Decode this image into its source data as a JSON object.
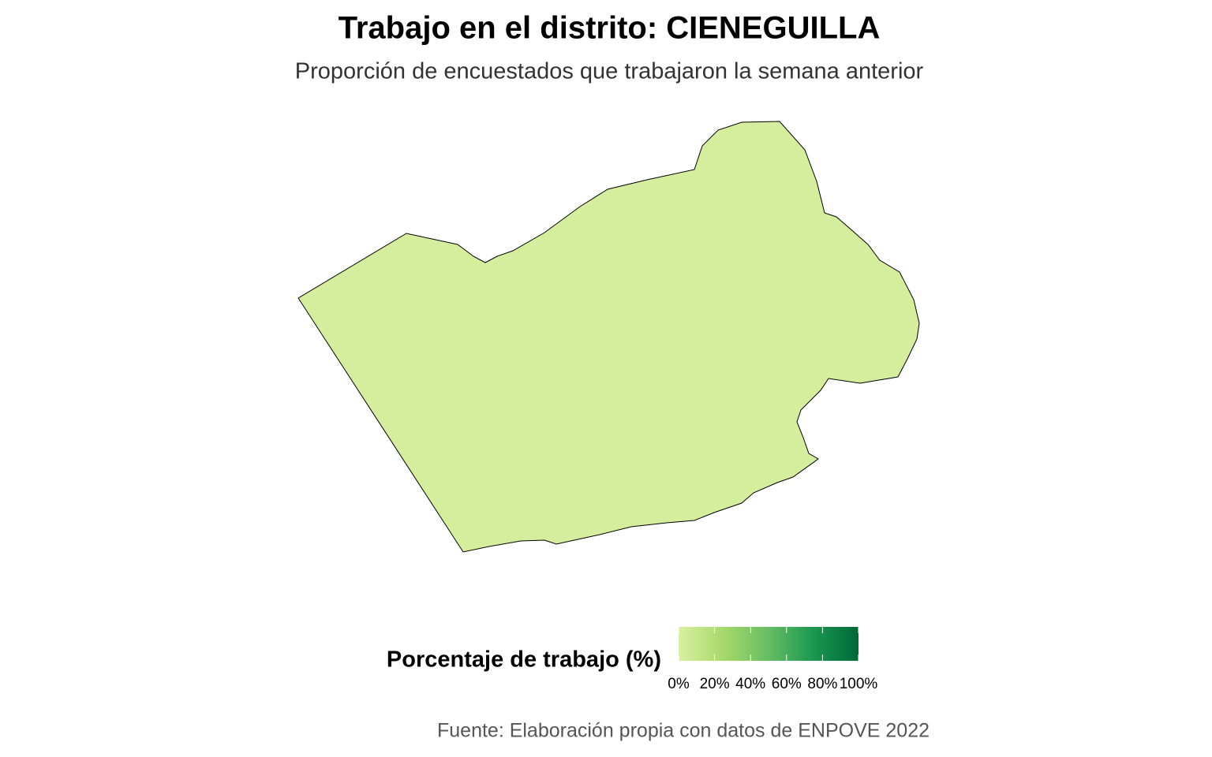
{
  "title": "Trabajo en el distrito: CIENEGUILLA",
  "subtitle": "Proporción de encuestados que trabajaron la semana anterior",
  "map": {
    "regions": [
      {
        "value": 2
      }
    ]
  },
  "legend": {
    "title": "Porcentaje de trabajo (%)",
    "colors": [
      "#d9f0a3",
      "#a6d96a",
      "#66bd63",
      "#1a9850",
      "#006837"
    ],
    "lim": [
      0,
      100
    ],
    "ticks": [
      {
        "value": 0,
        "label": "0%"
      },
      {
        "value": 20,
        "label": "20%"
      },
      {
        "value": 40,
        "label": "40%"
      },
      {
        "value": 60,
        "label": "60%"
      },
      {
        "value": 80,
        "label": "80%"
      },
      {
        "value": 100,
        "label": "100%"
      }
    ]
  },
  "caption": "Fuente: Elaboración propia con datos de ENPOVE 2022"
}
